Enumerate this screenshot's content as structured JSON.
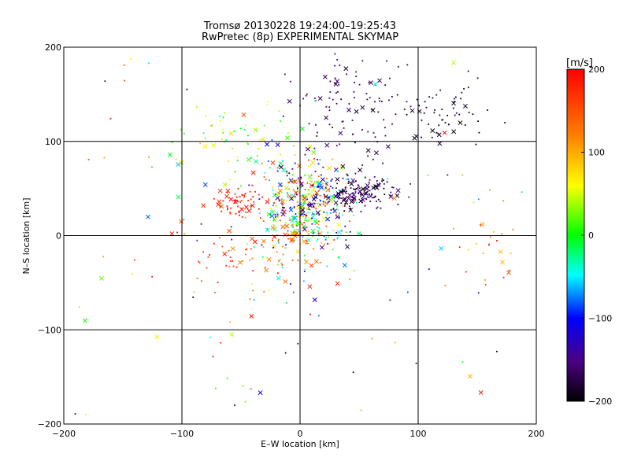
{
  "chart_data": {
    "type": "scatter",
    "title": "Tromsø 20130228 19:24:00–19:25:43",
    "subtitle": "RwPretec (8p) EXPERIMENTAL SKYMAP",
    "xlabel": "E–W location [km]",
    "ylabel": "N–S location [km]",
    "xlim": [
      -200,
      200
    ],
    "ylim": [
      -200,
      200
    ],
    "xticks": [
      -200,
      -100,
      0,
      100,
      200
    ],
    "yticks": [
      -200,
      -100,
      0,
      100,
      200
    ],
    "grid": true,
    "colorbar": {
      "label": "[m/s]",
      "range": [
        -200,
        200
      ],
      "ticks": [
        200,
        100,
        0,
        -100,
        -200
      ],
      "placement": "right",
      "colors": [
        "#000000",
        "#4b0082",
        "#0000ff",
        "#00ffff",
        "#00ff00",
        "#ffff00",
        "#ff8000",
        "#ff0000"
      ]
    },
    "clusters": [
      {
        "cx": 3,
        "cy": 30,
        "sx": 18,
        "sy": 25,
        "n": 420,
        "vmin": -150,
        "vmax": 180
      },
      {
        "cx": 45,
        "cy": 45,
        "sx": 18,
        "sy": 10,
        "n": 150,
        "vmin": -200,
        "vmax": -140
      },
      {
        "cx": 40,
        "cy": 140,
        "sx": 30,
        "sy": 35,
        "n": 110,
        "vmin": -185,
        "vmax": -150
      },
      {
        "cx": 120,
        "cy": 130,
        "sx": 22,
        "sy": 15,
        "n": 60,
        "vmin": -200,
        "vmax": -170
      },
      {
        "cx": -50,
        "cy": 35,
        "sx": 12,
        "sy": 8,
        "n": 60,
        "vmin": 170,
        "vmax": 200
      },
      {
        "cx": -45,
        "cy": -15,
        "sx": 30,
        "sy": 25,
        "n": 80,
        "vmin": 100,
        "vmax": 200
      },
      {
        "cx": -50,
        "cy": 100,
        "sx": 30,
        "sy": 25,
        "n": 60,
        "vmin": -30,
        "vmax": 100
      },
      {
        "cx": 0,
        "cy": 0,
        "sx": 120,
        "sy": 110,
        "n": 140,
        "vmin": -200,
        "vmax": 200
      },
      {
        "cx": 160,
        "cy": -10,
        "sx": 12,
        "sy": 25,
        "n": 25,
        "vmin": 80,
        "vmax": 200
      }
    ]
  }
}
